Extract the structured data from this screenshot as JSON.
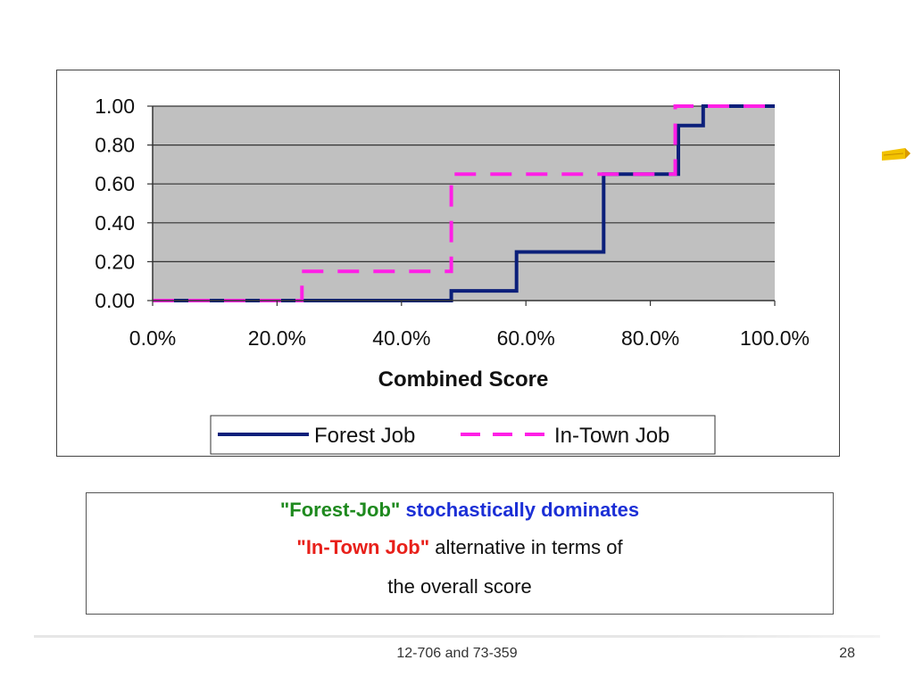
{
  "chart_data": {
    "type": "line",
    "step": true,
    "xlabel": "Combined Score",
    "ylabel": "",
    "xlim": [
      0,
      100
    ],
    "ylim": [
      0,
      1
    ],
    "xticks": [
      "0.0%",
      "20.0%",
      "40.0%",
      "60.0%",
      "80.0%",
      "100.0%"
    ],
    "yticks": [
      "0.00",
      "0.20",
      "0.40",
      "0.60",
      "0.80",
      "1.00"
    ],
    "grid": "horizontal",
    "legend_position": "bottom",
    "series": [
      {
        "name": "Forest Job",
        "style": "solid",
        "color": "#0b1f7a",
        "x": [
          0,
          48,
          48,
          58.5,
          58.5,
          72.5,
          72.5,
          84.5,
          84.5,
          88.5,
          88.5,
          100
        ],
        "y": [
          0,
          0,
          0.05,
          0.05,
          0.25,
          0.25,
          0.65,
          0.65,
          0.9,
          0.9,
          1.0,
          1.0
        ]
      },
      {
        "name": "In-Town Job",
        "style": "dashed",
        "color": "#ff1fe6",
        "x": [
          0,
          24,
          24,
          48,
          48,
          84,
          84,
          100
        ],
        "y": [
          0,
          0,
          0.15,
          0.15,
          0.65,
          0.65,
          1.0,
          1.0
        ]
      }
    ]
  },
  "note": {
    "line1_a": "\"Forest-Job\"",
    "line1_b": "stochastically dominates",
    "line2_a": "\"In-Town Job\"",
    "line2_b": "alternative in terms of",
    "line3": "the overall score"
  },
  "colors": {
    "plot_bg": "#c0c0c0",
    "green_text": "#1f8a1f",
    "blue_text": "#1b2fd6",
    "red_text": "#e8201a"
  },
  "footer": {
    "course": "12-706 and 73-359",
    "page": "28"
  },
  "icons": {
    "pencil": "pencil-icon"
  }
}
